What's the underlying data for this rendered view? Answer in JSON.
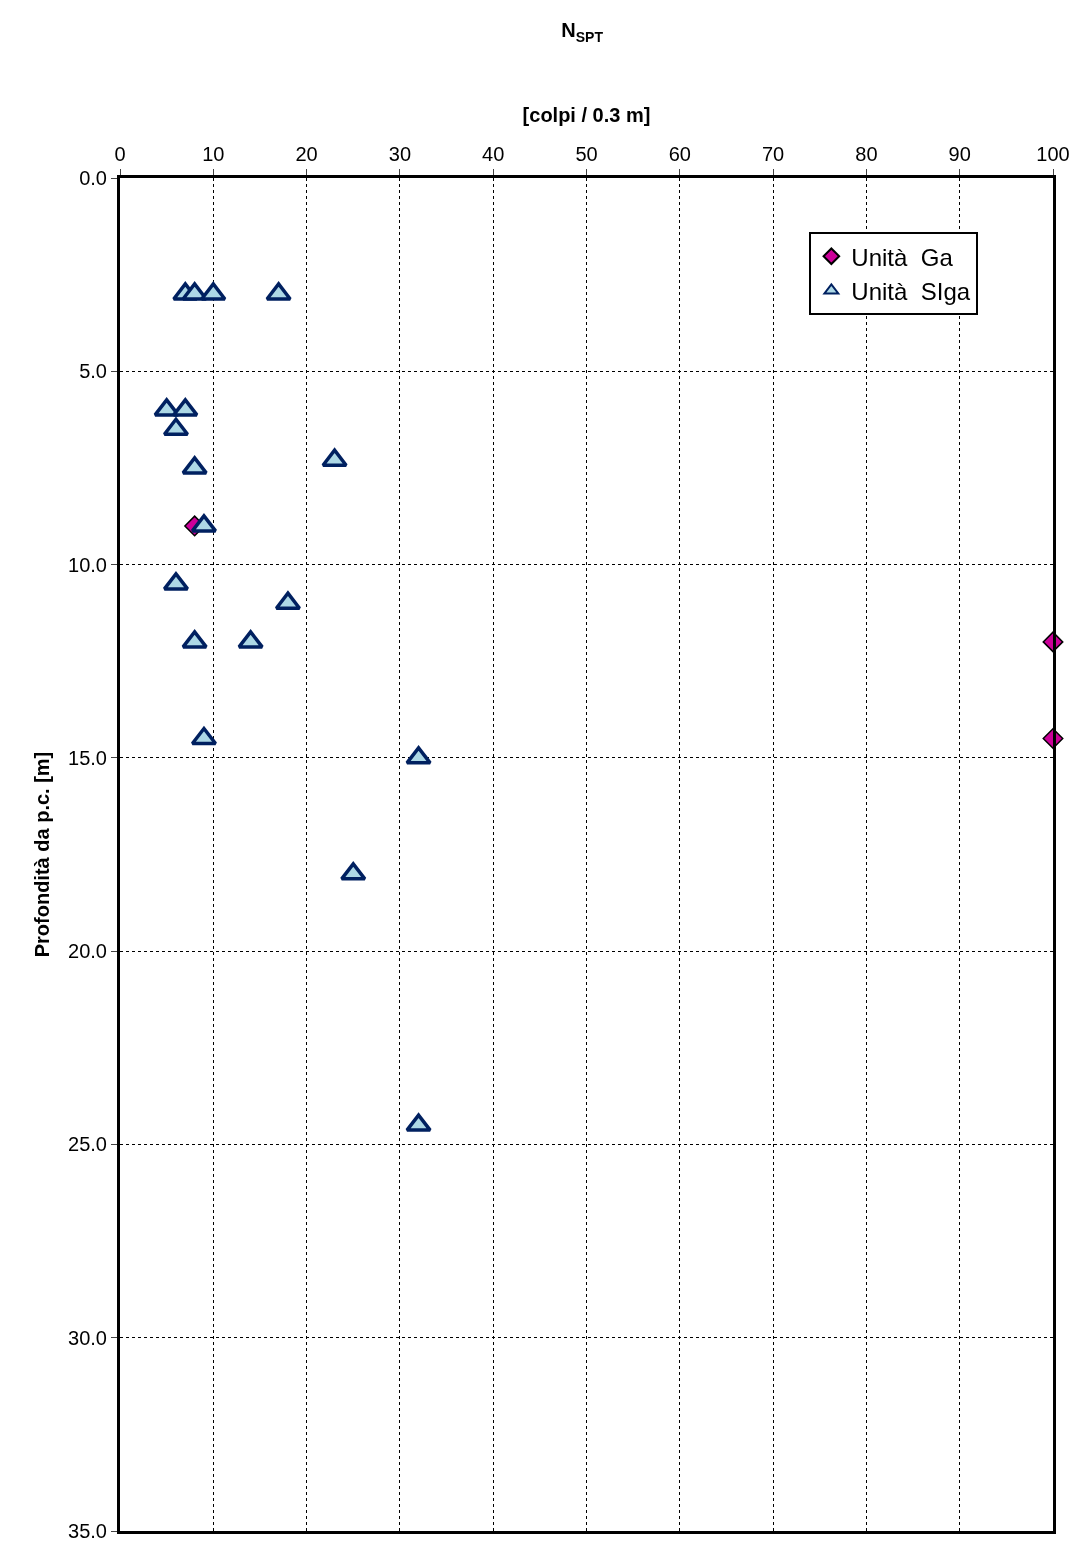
{
  "chart_data": {
    "type": "scatter",
    "title": "N$_{SPT}$",
    "xlabel": "[colpi / 0.3 m]",
    "ylabel": "Profondità da p.c. [m]",
    "xlim": [
      0,
      100
    ],
    "xticks": [
      0,
      10,
      20,
      30,
      40,
      50,
      60,
      70,
      80,
      90,
      100
    ],
    "ylim": [
      35,
      0
    ],
    "yticks": [
      {
        "value": 0,
        "label": "0.0"
      },
      {
        "value": 5,
        "label": "5.0"
      },
      {
        "value": 10,
        "label": "10.0"
      },
      {
        "value": 15,
        "label": "15.0"
      },
      {
        "value": 20,
        "label": "20.0"
      },
      {
        "value": 25,
        "label": "25.0"
      },
      {
        "value": 30,
        "label": "30.0"
      },
      {
        "value": 35,
        "label": "35.0"
      }
    ],
    "grid": true,
    "legend": "top right",
    "line_style": "dotted",
    "series": [
      {
        "name": "Unità  Ga",
        "color": "#cc0099",
        "marker": "diamond",
        "x": [
          8,
          100,
          100
        ],
        "values": [
          9,
          12,
          14.5
        ]
      },
      {
        "name": "Unità  SIga",
        "color": "#add8e6",
        "marker": "triangle",
        "x": [
          7,
          8,
          10,
          17,
          5,
          7,
          6,
          8,
          23,
          9,
          6,
          18,
          8,
          14,
          9,
          32,
          25,
          32
        ],
        "values": [
          3,
          3,
          3,
          3,
          6,
          6,
          6.5,
          7.5,
          7.3,
          9,
          10.5,
          11,
          12,
          12,
          14.5,
          15,
          18,
          24.5
        ]
      }
    ]
  }
}
